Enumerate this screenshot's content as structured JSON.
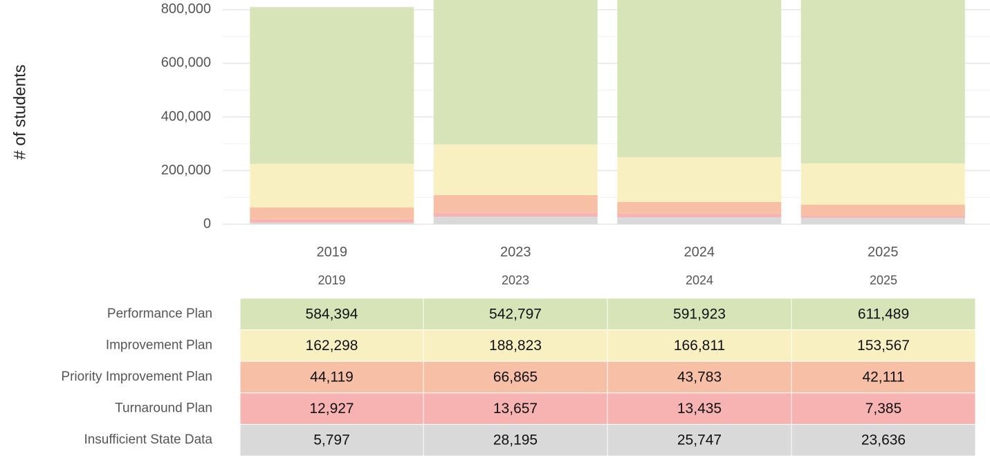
{
  "chart_data": {
    "type": "bar",
    "stacked": true,
    "y_label": "# of students",
    "categories": [
      "2019",
      "2023",
      "2024",
      "2025"
    ],
    "series": [
      {
        "name": "Performance Plan",
        "color": "#d7e4b8",
        "values": [
          584394,
          542797,
          591923,
          611489
        ],
        "value_labels": [
          "584,394",
          "542,797",
          "591,923",
          "611,489"
        ]
      },
      {
        "name": "Improvement Plan",
        "color": "#f8f0c0",
        "values": [
          162298,
          188823,
          166811,
          153567
        ],
        "value_labels": [
          "162,298",
          "188,823",
          "166,811",
          "153,567"
        ]
      },
      {
        "name": "Priority Improvement Plan",
        "color": "#f6bfa6",
        "values": [
          44119,
          66865,
          43783,
          42111
        ],
        "value_labels": [
          "44,119",
          "66,865",
          "43,783",
          "42,111"
        ]
      },
      {
        "name": "Turnaround Plan",
        "color": "#f7b2b2",
        "values": [
          12927,
          13657,
          13435,
          7385
        ],
        "value_labels": [
          "12,927",
          "13,657",
          "13,435",
          "7,385"
        ]
      },
      {
        "name": "Insufficient State Data",
        "color": "#d9d9d9",
        "values": [
          5797,
          28195,
          25747,
          23636
        ],
        "value_labels": [
          "5,797",
          "28,195",
          "25,747",
          "23,636"
        ]
      }
    ],
    "ylim": [
      0,
      836000
    ],
    "yticks": [
      0,
      {
        "value": 200000,
        "label": "200,000"
      },
      {
        "value": 400000,
        "label": "400,000"
      },
      {
        "value": 600000,
        "label": "600,000"
      },
      {
        "value": 800000,
        "label": "800,000"
      }
    ],
    "grid": true
  }
}
